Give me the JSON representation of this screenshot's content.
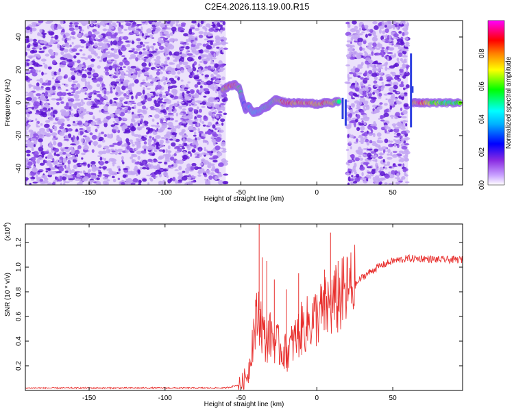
{
  "title": "C2E4.2026.113.19.00.R15",
  "colors": {
    "spectrogram_dense": "#6a1fd6",
    "spectrogram_light": "#c9b2f2",
    "snr_line": "#e8302e",
    "frame": "#000000"
  },
  "chart_data": [
    {
      "type": "heatmap",
      "title": "C2E4.2026.113.19.00.R15",
      "xlabel": "Height of straight line (km)",
      "ylabel": "Frequency (Hz)",
      "xlim": [
        -192,
        96
      ],
      "ylim": [
        -50,
        50
      ],
      "xticks": [
        -150,
        -100,
        -50,
        0,
        50
      ],
      "yticks": [
        -40,
        -20,
        0,
        20,
        40
      ],
      "colorbar": {
        "label": "Normalized spectral amplitude",
        "range": [
          0.0,
          1.0
        ],
        "ticks": [
          "0.0",
          "0.2",
          "0.4",
          "0.6",
          "0.8"
        ],
        "colormap": [
          "#ffffff",
          "#c8a0ff",
          "#8a2be2",
          "#0000ff",
          "#00b0ff",
          "#00ffff",
          "#00ff00",
          "#ffff00",
          "#ff8000",
          "#ff0000",
          "#ff00ff"
        ]
      },
      "noise_regions_km": [
        [
          -192,
          -60
        ],
        [
          20,
          60
        ]
      ],
      "signal_track": {
        "x_km": [
          -62,
          -58,
          -54,
          -51,
          -49,
          -47,
          -45,
          -42,
          -38,
          -35,
          -32,
          -30,
          -27,
          -24,
          -20,
          -15,
          -10,
          -5,
          0,
          5,
          10,
          15
        ],
        "freq_hz": [
          8,
          10,
          11,
          9,
          2,
          -4,
          -2,
          -6,
          -5,
          -3,
          -2,
          0,
          2,
          1,
          0,
          0,
          0,
          0,
          -1,
          0,
          0,
          1
        ],
        "amplitude": [
          0.7,
          0.9,
          0.95,
          0.7,
          0.4,
          0.35,
          0.4,
          0.5,
          0.45,
          0.5,
          0.6,
          0.55,
          0.7,
          0.8,
          0.9,
          0.85,
          0.9,
          0.9,
          0.8,
          0.9,
          0.8,
          0.6
        ]
      },
      "signal_track_2": {
        "x_km": [
          63,
          68,
          75,
          85,
          95
        ],
        "freq_hz": [
          0,
          0,
          0,
          0,
          0
        ],
        "amplitude": [
          0.8,
          0.95,
          0.7,
          0.6,
          0.6
        ]
      }
    },
    {
      "type": "line",
      "xlabel": "Height of straight line (km)",
      "ylabel": "SNR (10 * v/v)",
      "y_multiplier": "(x10",
      "y_multiplier_exp": "4",
      "xlim": [
        -192,
        96
      ],
      "ylim": [
        0,
        1.35
      ],
      "xticks": [
        -150,
        -100,
        -50,
        0,
        50
      ],
      "yticks": [
        "0.2",
        "0.4",
        "0.6",
        "0.8",
        "1.0",
        "1.2"
      ],
      "series": [
        {
          "x": [
            -192,
            -150,
            -100,
            -60,
            -50,
            -45,
            -42,
            -40,
            -38,
            -36,
            -34,
            -30,
            -25,
            -20,
            -15,
            -10,
            -5,
            0,
            5,
            10,
            15,
            20,
            25,
            30,
            40,
            50,
            60,
            70,
            80,
            90,
            96
          ],
          "y": [
            0.02,
            0.02,
            0.02,
            0.02,
            0.05,
            0.15,
            0.45,
            0.55,
            0.65,
            0.5,
            0.4,
            0.45,
            0.35,
            0.3,
            0.4,
            0.5,
            0.55,
            0.6,
            0.65,
            0.7,
            0.75,
            0.8,
            0.85,
            0.92,
            1.0,
            1.05,
            1.07,
            1.07,
            1.06,
            1.06,
            1.06
          ]
        }
      ],
      "spikes": [
        {
          "x": -38,
          "y": 1.35
        },
        {
          "x": -36,
          "y": 1.08
        },
        {
          "x": -33,
          "y": 1.05
        },
        {
          "x": -28,
          "y": 0.9
        },
        {
          "x": -20,
          "y": 0.82
        },
        {
          "x": -12,
          "y": 0.95
        },
        {
          "x": 5,
          "y": 0.98
        },
        {
          "x": 9,
          "y": 1.28
        },
        {
          "x": 14,
          "y": 1.05
        }
      ]
    }
  ]
}
